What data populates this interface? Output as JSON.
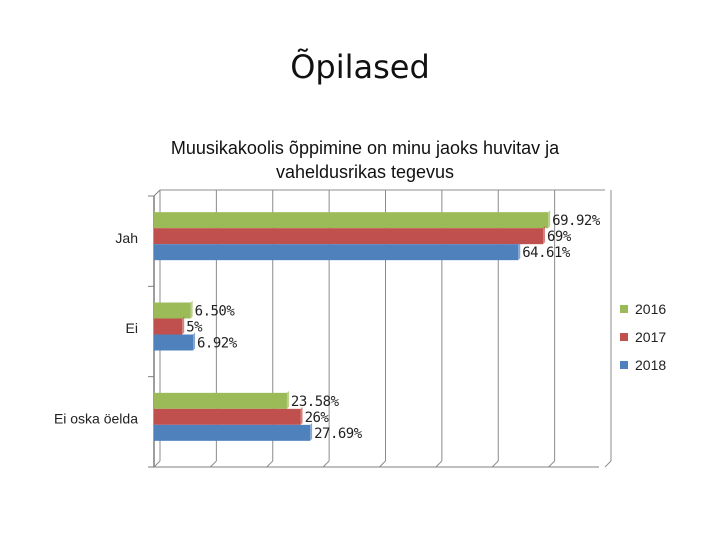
{
  "slide": {
    "title": "Õpilased"
  },
  "chart_data": {
    "type": "bar",
    "orientation": "horizontal",
    "title": "Muusikakoolis õppimine on minu jaoks huvitav ja vaheldusrikas tegevus",
    "categories": [
      "Jah",
      "Ei",
      "Ei oska öelda"
    ],
    "series": [
      {
        "name": "2016",
        "color": "#9bbb59",
        "values": [
          69.92,
          6.5,
          23.58
        ],
        "labels": [
          "69.92%",
          "6.50%",
          "23.58%"
        ]
      },
      {
        "name": "2017",
        "color": "#c0504d",
        "values": [
          69,
          5,
          26
        ],
        "labels": [
          "69%",
          "5%",
          "26%"
        ]
      },
      {
        "name": "2018",
        "color": "#4f81bd",
        "values": [
          64.61,
          6.92,
          27.69
        ],
        "labels": [
          "64.61%",
          "6.92%",
          "27.69%"
        ]
      }
    ],
    "xlim": [
      0,
      80
    ],
    "grid": true,
    "legend_position": "right"
  }
}
